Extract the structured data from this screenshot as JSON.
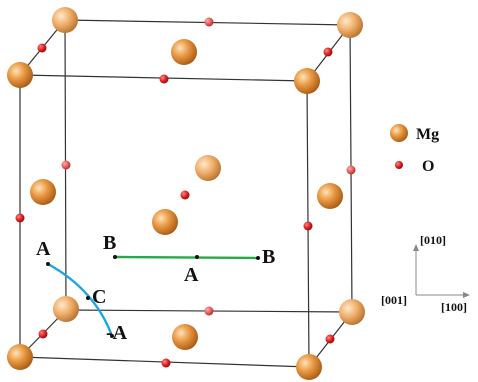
{
  "legend": {
    "items": [
      {
        "label": "Mg",
        "kind": "mg"
      },
      {
        "label": "O",
        "kind": "o"
      }
    ]
  },
  "path_labels": {
    "a_left_top": "A",
    "a_left_bottom": "-A",
    "c": "C",
    "b_left": "B",
    "b_right": "B",
    "a_center": "A"
  },
  "axes": {
    "y": "[010]",
    "x": "[100]",
    "z": "[001]"
  },
  "colors": {
    "mg": "#d9822b",
    "o": "#d41e1e",
    "path_ac": "#1aa7e0",
    "path_bb": "#2aa84a",
    "edge": "#333333"
  }
}
